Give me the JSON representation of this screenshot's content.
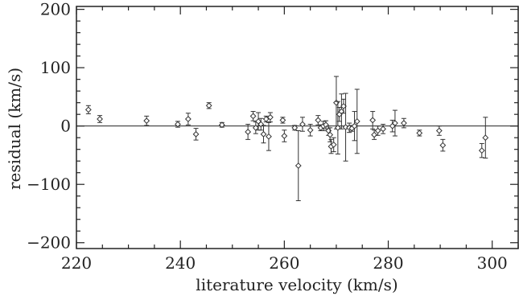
{
  "chart_data": {
    "type": "scatter",
    "title": "",
    "xlabel": "literature velocity (km/s)",
    "ylabel": "residual (km/s)",
    "xlim": [
      220,
      305
    ],
    "ylim": [
      -210,
      205
    ],
    "x_ticks": [
      220,
      240,
      260,
      280,
      300
    ],
    "y_ticks": [
      -200,
      -100,
      0,
      100,
      200
    ],
    "x_tick_labels": [
      "220",
      "240",
      "260",
      "280",
      "300"
    ],
    "y_tick_labels": [
      "−200",
      "−100",
      "0",
      "100",
      "200"
    ],
    "reference_line_y": 0,
    "marker": "open-diamond",
    "error_bars": true,
    "series": [
      {
        "points": [
          {
            "x": 222.3,
            "y": 28,
            "err": 7
          },
          {
            "x": 224.5,
            "y": 12,
            "err": 6
          },
          {
            "x": 233.5,
            "y": 9,
            "err": 8
          },
          {
            "x": 239.5,
            "y": 3,
            "err": 5
          },
          {
            "x": 241.5,
            "y": 12,
            "err": 10
          },
          {
            "x": 243.0,
            "y": -14,
            "err": 10
          },
          {
            "x": 245.5,
            "y": 35,
            "err": 5
          },
          {
            "x": 248.0,
            "y": 2,
            "err": 4
          },
          {
            "x": 253.0,
            "y": -10,
            "err": 13
          },
          {
            "x": 254.0,
            "y": 17,
            "err": 8
          },
          {
            "x": 254.5,
            "y": -3,
            "err": 10
          },
          {
            "x": 255.0,
            "y": 8,
            "err": 15
          },
          {
            "x": 255.5,
            "y": 3,
            "err": 10
          },
          {
            "x": 256.0,
            "y": -14,
            "err": 15
          },
          {
            "x": 256.5,
            "y": 12,
            "err": 5
          },
          {
            "x": 257.0,
            "y": -18,
            "err": 24
          },
          {
            "x": 257.3,
            "y": 15,
            "err": 8
          },
          {
            "x": 259.7,
            "y": 10,
            "err": 5
          },
          {
            "x": 260.0,
            "y": -17,
            "err": 10
          },
          {
            "x": 262.0,
            "y": -3,
            "err": 4
          },
          {
            "x": 262.7,
            "y": -68,
            "err": 60
          },
          {
            "x": 263.5,
            "y": 3,
            "err": 12
          },
          {
            "x": 265.0,
            "y": -7,
            "err": 10
          },
          {
            "x": 266.5,
            "y": 10,
            "err": 8
          },
          {
            "x": 267.0,
            "y": -3,
            "err": 5
          },
          {
            "x": 267.5,
            "y": 0,
            "err": 8
          },
          {
            "x": 268.0,
            "y": 2,
            "err": 7
          },
          {
            "x": 268.5,
            "y": -8,
            "err": 8
          },
          {
            "x": 268.8,
            "y": -15,
            "err": 12
          },
          {
            "x": 269.0,
            "y": -35,
            "err": 12
          },
          {
            "x": 269.5,
            "y": -32,
            "err": 12
          },
          {
            "x": 270.0,
            "y": 40,
            "err": 45
          },
          {
            "x": 270.3,
            "y": -3,
            "err": 45
          },
          {
            "x": 270.6,
            "y": 20,
            "err": 12
          },
          {
            "x": 271.0,
            "y": 25,
            "err": 30
          },
          {
            "x": 271.4,
            "y": 34,
            "err": 12
          },
          {
            "x": 271.8,
            "y": -2,
            "err": 58
          },
          {
            "x": 272.5,
            "y": -3,
            "err": 8
          },
          {
            "x": 273.0,
            "y": -4,
            "err": 5
          },
          {
            "x": 273.5,
            "y": 0,
            "err": 25
          },
          {
            "x": 274.0,
            "y": 8,
            "err": 55
          },
          {
            "x": 277.0,
            "y": 10,
            "err": 15
          },
          {
            "x": 277.3,
            "y": -15,
            "err": 8
          },
          {
            "x": 278.0,
            "y": -8,
            "err": 8
          },
          {
            "x": 279.0,
            "y": -5,
            "err": 8
          },
          {
            "x": 280.8,
            "y": 0,
            "err": 10
          },
          {
            "x": 281.3,
            "y": 5,
            "err": 22
          },
          {
            "x": 283.0,
            "y": 5,
            "err": 8
          },
          {
            "x": 286.0,
            "y": -12,
            "err": 5
          },
          {
            "x": 289.8,
            "y": -8,
            "err": 8
          },
          {
            "x": 290.5,
            "y": -33,
            "err": 10
          },
          {
            "x": 298.0,
            "y": -42,
            "err": 12
          },
          {
            "x": 298.7,
            "y": -20,
            "err": 35
          }
        ]
      }
    ]
  }
}
